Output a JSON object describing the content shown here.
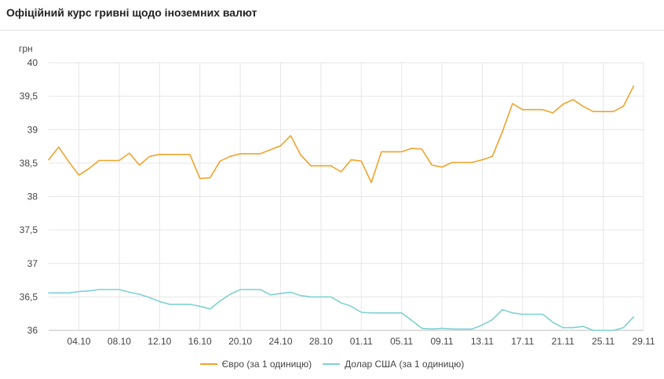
{
  "header": {
    "title": "Офіційний курс гривні щодо іноземних валют"
  },
  "chart_data": {
    "type": "line",
    "title": "Офіційний курс гривні щодо іноземних валют",
    "ylabel": "грн",
    "xlabel": "",
    "ylim": [
      36,
      40
    ],
    "ytick_labels": [
      "36",
      "36,5",
      "37",
      "37,5",
      "38",
      "38,5",
      "39",
      "39,5",
      "40"
    ],
    "ytick_values": [
      36,
      36.5,
      37,
      37.5,
      38,
      38.5,
      39,
      39.5,
      40
    ],
    "xtick_labels": [
      "04.10",
      "08.10",
      "12.10",
      "16.10",
      "20.10",
      "24.10",
      "28.10",
      "01.11",
      "05.11",
      "09.11",
      "13.11",
      "17.11",
      "21.11",
      "25.11",
      "29.11"
    ],
    "xtick_days": [
      3,
      7,
      11,
      15,
      19,
      23,
      27,
      31,
      35,
      39,
      43,
      47,
      51,
      55,
      59
    ],
    "grid": true,
    "legend_position": "bottom",
    "series": [
      {
        "name": "Євро (за 1 одиницю)",
        "color": "#f0a32a",
        "points": [
          [
            0,
            38.55
          ],
          [
            1,
            38.74
          ],
          [
            2,
            38.52
          ],
          [
            3,
            38.32
          ],
          [
            4,
            38.42
          ],
          [
            5,
            38.54
          ],
          [
            6,
            38.54
          ],
          [
            7,
            38.54
          ],
          [
            8,
            38.65
          ],
          [
            9,
            38.47
          ],
          [
            10,
            38.6
          ],
          [
            11,
            38.63
          ],
          [
            12,
            38.63
          ],
          [
            13,
            38.63
          ],
          [
            14,
            38.63
          ],
          [
            15,
            38.27
          ],
          [
            16,
            38.28
          ],
          [
            17,
            38.53
          ],
          [
            18,
            38.6
          ],
          [
            19,
            38.64
          ],
          [
            20,
            38.64
          ],
          [
            21,
            38.64
          ],
          [
            22,
            38.7
          ],
          [
            23,
            38.76
          ],
          [
            24,
            38.91
          ],
          [
            25,
            38.62
          ],
          [
            26,
            38.46
          ],
          [
            27,
            38.46
          ],
          [
            28,
            38.46
          ],
          [
            29,
            38.37
          ],
          [
            30,
            38.55
          ],
          [
            31,
            38.53
          ],
          [
            32,
            38.21
          ],
          [
            33,
            38.67
          ],
          [
            34,
            38.67
          ],
          [
            35,
            38.67
          ],
          [
            36,
            38.72
          ],
          [
            37,
            38.71
          ],
          [
            38,
            38.47
          ],
          [
            39,
            38.44
          ],
          [
            40,
            38.51
          ],
          [
            41,
            38.51
          ],
          [
            42,
            38.51
          ],
          [
            43,
            38.55
          ],
          [
            44,
            38.6
          ],
          [
            45,
            38.97
          ],
          [
            46,
            39.39
          ],
          [
            47,
            39.3
          ],
          [
            48,
            39.3
          ],
          [
            49,
            39.3
          ],
          [
            50,
            39.25
          ],
          [
            51,
            39.38
          ],
          [
            52,
            39.45
          ],
          [
            53,
            39.35
          ],
          [
            54,
            39.27
          ],
          [
            55,
            39.27
          ],
          [
            56,
            39.27
          ],
          [
            57,
            39.35
          ],
          [
            58,
            39.65
          ]
        ]
      },
      {
        "name": "Долар США (за 1 одиницю)",
        "color": "#7fd1d1",
        "points": [
          [
            0,
            36.56
          ],
          [
            1,
            36.56
          ],
          [
            2,
            36.56
          ],
          [
            3,
            36.58
          ],
          [
            4,
            36.59
          ],
          [
            5,
            36.61
          ],
          [
            6,
            36.61
          ],
          [
            7,
            36.61
          ],
          [
            8,
            36.57
          ],
          [
            9,
            36.54
          ],
          [
            10,
            36.49
          ],
          [
            11,
            36.43
          ],
          [
            12,
            36.39
          ],
          [
            13,
            36.39
          ],
          [
            14,
            36.39
          ],
          [
            15,
            36.36
          ],
          [
            16,
            36.32
          ],
          [
            17,
            36.44
          ],
          [
            18,
            36.54
          ],
          [
            19,
            36.61
          ],
          [
            20,
            36.61
          ],
          [
            21,
            36.61
          ],
          [
            22,
            36.53
          ],
          [
            23,
            36.55
          ],
          [
            24,
            36.57
          ],
          [
            25,
            36.52
          ],
          [
            26,
            36.5
          ],
          [
            27,
            36.5
          ],
          [
            28,
            36.5
          ],
          [
            29,
            36.41
          ],
          [
            30,
            36.36
          ],
          [
            31,
            36.27
          ],
          [
            32,
            36.26
          ],
          [
            33,
            36.26
          ],
          [
            34,
            36.26
          ],
          [
            35,
            36.26
          ],
          [
            36,
            36.15
          ],
          [
            37,
            36.03
          ],
          [
            38,
            36.02
          ],
          [
            39,
            36.03
          ],
          [
            40,
            36.02
          ],
          [
            41,
            36.02
          ],
          [
            42,
            36.02
          ],
          [
            43,
            36.08
          ],
          [
            44,
            36.16
          ],
          [
            45,
            36.31
          ],
          [
            46,
            36.26
          ],
          [
            47,
            36.24
          ],
          [
            48,
            36.24
          ],
          [
            49,
            36.24
          ],
          [
            50,
            36.12
          ],
          [
            51,
            36.04
          ],
          [
            52,
            36.04
          ],
          [
            53,
            36.06
          ],
          [
            54,
            36.0
          ],
          [
            55,
            36.0
          ],
          [
            56,
            36.0
          ],
          [
            57,
            36.04
          ],
          [
            58,
            36.2
          ]
        ]
      }
    ]
  }
}
